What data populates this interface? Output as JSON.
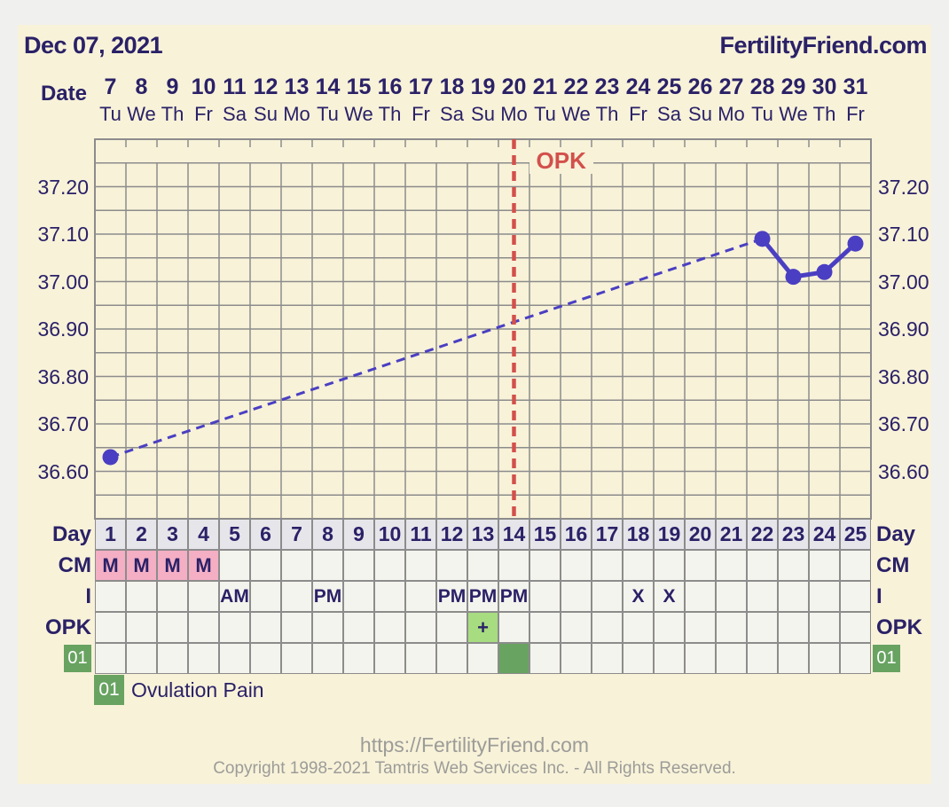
{
  "header": {
    "date": "Dec 07, 2021",
    "brand": "FertilityFriend.com"
  },
  "date_axis": {
    "label": "Date",
    "dates": [
      "7",
      "8",
      "9",
      "10",
      "11",
      "12",
      "13",
      "14",
      "15",
      "16",
      "17",
      "18",
      "19",
      "20",
      "21",
      "22",
      "23",
      "24",
      "25",
      "26",
      "27",
      "28",
      "29",
      "30",
      "31"
    ],
    "weekdays": [
      "Tu",
      "We",
      "Th",
      "Fr",
      "Sa",
      "Su",
      "Mo",
      "Tu",
      "We",
      "Th",
      "Fr",
      "Sa",
      "Su",
      "Mo",
      "Tu",
      "We",
      "Th",
      "Fr",
      "Sa",
      "Su",
      "Mo",
      "Tu",
      "We",
      "Th",
      "Fr"
    ]
  },
  "chart_data": {
    "type": "line",
    "x_unit": "cycle day",
    "num_days": 25,
    "y_min": 36.5,
    "y_max": 37.3,
    "y_grid_step": 0.05,
    "y_tick_labels": [
      "37.20",
      "37.10",
      "37.00",
      "36.90",
      "36.80",
      "36.70",
      "36.60"
    ],
    "y_tick_values": [
      37.2,
      37.1,
      37.0,
      36.9,
      36.8,
      36.7,
      36.6
    ],
    "grid": true,
    "series": [
      {
        "name": "temperature",
        "unit": "C",
        "points": [
          {
            "day": 1,
            "temp": 36.63
          },
          {
            "day": 22,
            "temp": 37.09
          },
          {
            "day": 23,
            "temp": 37.01
          },
          {
            "day": 24,
            "temp": 37.02
          },
          {
            "day": 25,
            "temp": 37.08
          }
        ],
        "gap_style": "dashed",
        "color": "#4A3FC2"
      }
    ],
    "annotations": [
      {
        "type": "vline",
        "day": 14,
        "label": "OPK",
        "style": "dashed",
        "color": "#D3504B"
      }
    ]
  },
  "table": {
    "rows": [
      {
        "id": "day",
        "label": "Day",
        "cells": {
          "1": "1",
          "2": "2",
          "3": "3",
          "4": "4",
          "5": "5",
          "6": "6",
          "7": "7",
          "8": "8",
          "9": "9",
          "10": "10",
          "11": "11",
          "12": "12",
          "13": "13",
          "14": "14",
          "15": "15",
          "16": "16",
          "17": "17",
          "18": "18",
          "19": "19",
          "20": "20",
          "21": "21",
          "22": "22",
          "23": "23",
          "24": "24",
          "25": "25"
        }
      },
      {
        "id": "cm",
        "label": "CM",
        "cells": {
          "1": "M",
          "2": "M",
          "3": "M",
          "4": "M"
        }
      },
      {
        "id": "intercourse",
        "label": "I",
        "cells": {
          "5": "AM",
          "8": "PM",
          "12": "PM",
          "13": "PM",
          "14": "PM",
          "18": "X",
          "19": "X"
        }
      },
      {
        "id": "opk",
        "label": "OPK",
        "cells": {
          "13": "+"
        }
      },
      {
        "id": "events",
        "label": "01",
        "filled_days": [
          14
        ]
      }
    ]
  },
  "legend": {
    "badge": "01",
    "label": "Ovulation Pain"
  },
  "footer": {
    "url": "https://FertilityFriend.com",
    "copyright": "Copyright 1998-2021 Tamtris Web Services Inc. - All Rights Reserved."
  },
  "colors": {
    "background": "#F8F2D9",
    "page_edge": "#F0F0EF",
    "text_navy": "#2A2167",
    "grid_gray": "#8C8C8C",
    "temp_line": "#4A3FC2",
    "opk_red": "#D3504B",
    "cm_pink": "#F4AFC5",
    "day_cell_gray": "#E6E5EA",
    "cell_offwhite": "#F4F4EE",
    "opk_pos_green": "#A7DC80",
    "event_green": "#68A361",
    "footer_gray": "#9C9C98"
  }
}
